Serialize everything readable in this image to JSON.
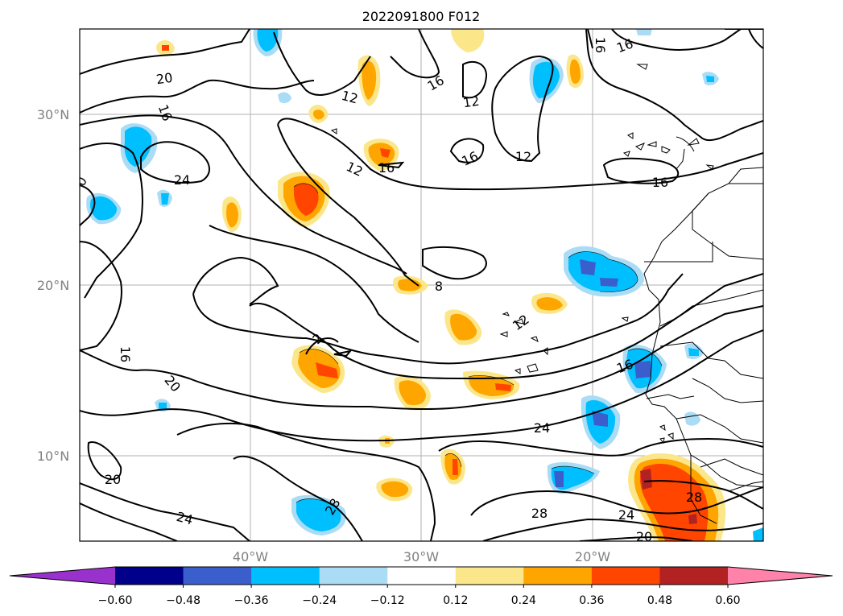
{
  "title": "2022091800 F012",
  "lat_labels": [
    "30°N",
    "20°N",
    "10°N"
  ],
  "lon_labels": [
    "40°W",
    "30°W",
    "20°W"
  ],
  "contour_labels": [
    "20",
    "16",
    "24",
    "12",
    "16",
    "12",
    "16",
    "16",
    "12",
    "16",
    "16",
    "16",
    "12",
    "8",
    "12",
    "16",
    "16",
    "20",
    "24",
    "28",
    "28",
    "24",
    "20",
    "20",
    "24",
    "0",
    "2",
    "28"
  ],
  "colorbar": {
    "ticks": [
      "−0.60",
      "−0.48",
      "−0.36",
      "−0.24",
      "−0.12",
      "0.12",
      "0.24",
      "0.36",
      "0.48",
      "0.60"
    ],
    "colors": [
      "#9932cc",
      "#00008b",
      "#3a5fcd",
      "#00bfff",
      "#aadcf5",
      "#ffffff",
      "#fbe78a",
      "#ffa500",
      "#ff4500",
      "#b22222",
      "#ff82ab"
    ]
  }
}
